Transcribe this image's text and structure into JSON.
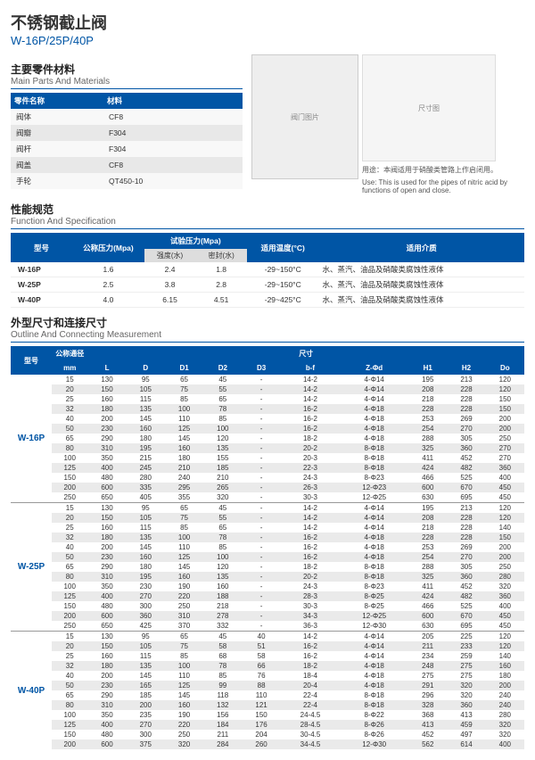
{
  "title_cn": "不锈钢截止阀",
  "title_model": "W-16P/25P/40P",
  "parts": {
    "title_cn": "主要零件材料",
    "title_en": "Main Parts And Materials",
    "col1": "零件名称",
    "col2": "材料",
    "rows": [
      {
        "n": "阀体",
        "m": "CF8"
      },
      {
        "n": "阀瓣",
        "m": "F304"
      },
      {
        "n": "阀杆",
        "m": "F304"
      },
      {
        "n": "阀盖",
        "m": "CF8"
      },
      {
        "n": "手轮",
        "m": "QT450-10"
      }
    ]
  },
  "use_cn": "用途：本阀适用于硝酸类管路上作启闭用。",
  "use_en": "Use: This is used for the pipes of nitric acid by functions of open and close.",
  "spec": {
    "title_cn": "性能规范",
    "title_en": "Function And Specification",
    "h_model": "型号",
    "h_nom": "公称压力(Mpa)",
    "h_test": "试验压力(Mpa)",
    "h_temp": "适用温度(°C)",
    "h_media": "适用介质",
    "sub_strength": "强度(水)",
    "sub_seal": "密封(水)",
    "rows": [
      {
        "m": "W-16P",
        "p": "1.6",
        "s": "2.4",
        "se": "1.8",
        "t": "-29~150°C",
        "md": "水、蒸汽、油品及硝酸类腐蚀性液体"
      },
      {
        "m": "W-25P",
        "p": "2.5",
        "s": "3.8",
        "se": "2.8",
        "t": "-29~150°C",
        "md": "水、蒸汽、油品及硝酸类腐蚀性液体"
      },
      {
        "m": "W-40P",
        "p": "4.0",
        "s": "6.15",
        "se": "4.51",
        "t": "-29~425°C",
        "md": "水、蒸汽、油品及硝酸类腐蚀性液体"
      }
    ]
  },
  "dim": {
    "title_cn": "外型尺寸和连接尺寸",
    "title_en": "Outline And Connecting Measurement",
    "h_model": "型号",
    "h_dn": "公称通径",
    "h_size": "尺寸",
    "cols": [
      "mm",
      "L",
      "D",
      "D1",
      "D2",
      "D3",
      "b-f",
      "Z-Φd",
      "H1",
      "H2",
      "Do"
    ],
    "groups": [
      {
        "model": "W-16P",
        "rows": [
          [
            "15",
            "130",
            "95",
            "65",
            "45",
            "-",
            "14-2",
            "4-Φ14",
            "195",
            "213",
            "120"
          ],
          [
            "20",
            "150",
            "105",
            "75",
            "55",
            "-",
            "14-2",
            "4-Φ14",
            "208",
            "228",
            "120"
          ],
          [
            "25",
            "160",
            "115",
            "85",
            "65",
            "-",
            "14-2",
            "4-Φ14",
            "218",
            "228",
            "150"
          ],
          [
            "32",
            "180",
            "135",
            "100",
            "78",
            "-",
            "16-2",
            "4-Φ18",
            "228",
            "228",
            "150"
          ],
          [
            "40",
            "200",
            "145",
            "110",
            "85",
            "-",
            "16-2",
            "4-Φ18",
            "253",
            "269",
            "200"
          ],
          [
            "50",
            "230",
            "160",
            "125",
            "100",
            "-",
            "16-2",
            "4-Φ18",
            "254",
            "270",
            "200"
          ],
          [
            "65",
            "290",
            "180",
            "145",
            "120",
            "-",
            "18-2",
            "4-Φ18",
            "288",
            "305",
            "250"
          ],
          [
            "80",
            "310",
            "195",
            "160",
            "135",
            "-",
            "20-2",
            "8-Φ18",
            "325",
            "360",
            "270"
          ],
          [
            "100",
            "350",
            "215",
            "180",
            "155",
            "-",
            "20-3",
            "8-Φ18",
            "411",
            "452",
            "270"
          ],
          [
            "125",
            "400",
            "245",
            "210",
            "185",
            "-",
            "22-3",
            "8-Φ18",
            "424",
            "482",
            "360"
          ],
          [
            "150",
            "480",
            "280",
            "240",
            "210",
            "-",
            "24-3",
            "8-Φ23",
            "466",
            "525",
            "400"
          ],
          [
            "200",
            "600",
            "335",
            "295",
            "265",
            "-",
            "26-3",
            "12-Φ23",
            "600",
            "670",
            "450"
          ],
          [
            "250",
            "650",
            "405",
            "355",
            "320",
            "-",
            "30-3",
            "12-Φ25",
            "630",
            "695",
            "450"
          ]
        ]
      },
      {
        "model": "W-25P",
        "rows": [
          [
            "15",
            "130",
            "95",
            "65",
            "45",
            "-",
            "14-2",
            "4-Φ14",
            "195",
            "213",
            "120"
          ],
          [
            "20",
            "150",
            "105",
            "75",
            "55",
            "-",
            "14-2",
            "4-Φ14",
            "208",
            "228",
            "120"
          ],
          [
            "25",
            "160",
            "115",
            "85",
            "65",
            "-",
            "14-2",
            "4-Φ14",
            "218",
            "228",
            "140"
          ],
          [
            "32",
            "180",
            "135",
            "100",
            "78",
            "-",
            "16-2",
            "4-Φ18",
            "228",
            "228",
            "150"
          ],
          [
            "40",
            "200",
            "145",
            "110",
            "85",
            "-",
            "16-2",
            "4-Φ18",
            "253",
            "269",
            "200"
          ],
          [
            "50",
            "230",
            "160",
            "125",
            "100",
            "-",
            "16-2",
            "4-Φ18",
            "254",
            "270",
            "200"
          ],
          [
            "65",
            "290",
            "180",
            "145",
            "120",
            "-",
            "18-2",
            "8-Φ18",
            "288",
            "305",
            "250"
          ],
          [
            "80",
            "310",
            "195",
            "160",
            "135",
            "-",
            "20-2",
            "8-Φ18",
            "325",
            "360",
            "280"
          ],
          [
            "100",
            "350",
            "230",
            "190",
            "160",
            "-",
            "24-3",
            "8-Φ23",
            "411",
            "452",
            "320"
          ],
          [
            "125",
            "400",
            "270",
            "220",
            "188",
            "-",
            "28-3",
            "8-Φ25",
            "424",
            "482",
            "360"
          ],
          [
            "150",
            "480",
            "300",
            "250",
            "218",
            "-",
            "30-3",
            "8-Φ25",
            "466",
            "525",
            "400"
          ],
          [
            "200",
            "600",
            "360",
            "310",
            "278",
            "-",
            "34-3",
            "12-Φ25",
            "600",
            "670",
            "450"
          ],
          [
            "250",
            "650",
            "425",
            "370",
            "332",
            "-",
            "36-3",
            "12-Φ30",
            "630",
            "695",
            "450"
          ]
        ]
      },
      {
        "model": "W-40P",
        "rows": [
          [
            "15",
            "130",
            "95",
            "65",
            "45",
            "40",
            "14-2",
            "4-Φ14",
            "205",
            "225",
            "120"
          ],
          [
            "20",
            "150",
            "105",
            "75",
            "58",
            "51",
            "16-2",
            "4-Φ14",
            "211",
            "233",
            "120"
          ],
          [
            "25",
            "160",
            "115",
            "85",
            "68",
            "58",
            "16-2",
            "4-Φ14",
            "234",
            "259",
            "140"
          ],
          [
            "32",
            "180",
            "135",
            "100",
            "78",
            "66",
            "18-2",
            "4-Φ18",
            "248",
            "275",
            "160"
          ],
          [
            "40",
            "200",
            "145",
            "110",
            "85",
            "76",
            "18-4",
            "4-Φ18",
            "275",
            "275",
            "180"
          ],
          [
            "50",
            "230",
            "165",
            "125",
            "99",
            "88",
            "20-4",
            "4-Φ18",
            "291",
            "320",
            "200"
          ],
          [
            "65",
            "290",
            "185",
            "145",
            "118",
            "110",
            "22-4",
            "8-Φ18",
            "296",
            "320",
            "240"
          ],
          [
            "80",
            "310",
            "200",
            "160",
            "132",
            "121",
            "22-4",
            "8-Φ18",
            "328",
            "360",
            "240"
          ],
          [
            "100",
            "350",
            "235",
            "190",
            "156",
            "150",
            "24-4.5",
            "8-Φ22",
            "368",
            "413",
            "280"
          ],
          [
            "125",
            "400",
            "270",
            "220",
            "184",
            "176",
            "28-4.5",
            "8-Φ26",
            "413",
            "459",
            "320"
          ],
          [
            "150",
            "480",
            "300",
            "250",
            "211",
            "204",
            "30-4.5",
            "8-Φ26",
            "452",
            "497",
            "320"
          ],
          [
            "200",
            "600",
            "375",
            "320",
            "284",
            "260",
            "34-4.5",
            "12-Φ30",
            "562",
            "614",
            "400"
          ]
        ]
      }
    ]
  }
}
